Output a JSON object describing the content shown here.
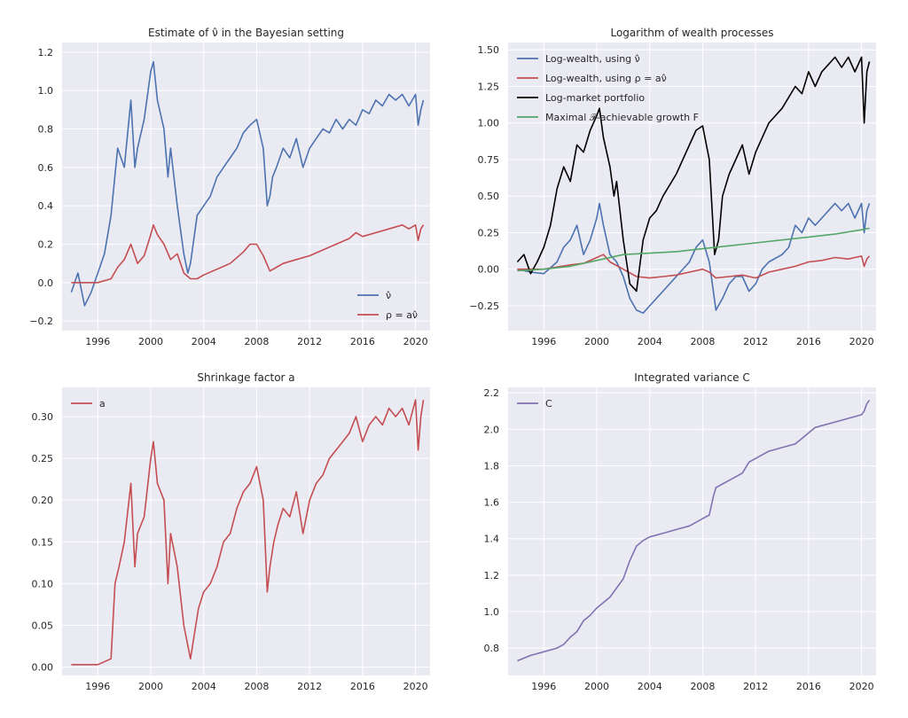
{
  "chart_data": [
    {
      "type": "line",
      "title": "Estimate of ν̂ in the Bayesian setting",
      "xlabel": "",
      "ylabel": "",
      "xlim": [
        1993.3,
        2021.1
      ],
      "ylim": [
        -0.25,
        1.25
      ],
      "xticks": [
        1996,
        2000,
        2004,
        2008,
        2012,
        2016,
        2020
      ],
      "xtick_labels": [
        "1996",
        "2000",
        "2004",
        "2008",
        "2012",
        "2016",
        "2020"
      ],
      "yticks": [
        -0.2,
        0.0,
        0.2,
        0.4,
        0.6,
        0.8,
        1.0,
        1.2
      ],
      "ytick_labels": [
        "−0.2",
        "0.0",
        "0.2",
        "0.4",
        "0.6",
        "0.8",
        "1.0",
        "1.2"
      ],
      "legend": "lower-right",
      "grid": true,
      "series": [
        {
          "name": "ν̂",
          "color": "#4c72b0",
          "x": [
            1994.0,
            1994.5,
            1995.0,
            1995.5,
            1996.0,
            1996.5,
            1997.0,
            1997.5,
            1998.0,
            1998.5,
            1998.8,
            1999.0,
            1999.5,
            2000.0,
            2000.2,
            2000.5,
            2001.0,
            2001.3,
            2001.5,
            2002.0,
            2002.5,
            2002.8,
            2003.0,
            2003.5,
            2004.0,
            2004.5,
            2005.0,
            2005.5,
            2006.0,
            2006.5,
            2007.0,
            2007.5,
            2008.0,
            2008.5,
            2008.8,
            2009.0,
            2009.2,
            2009.5,
            2010.0,
            2010.5,
            2011.0,
            2011.5,
            2012.0,
            2012.5,
            2013.0,
            2013.5,
            2014.0,
            2014.5,
            2015.0,
            2015.5,
            2016.0,
            2016.5,
            2017.0,
            2017.5,
            2018.0,
            2018.5,
            2019.0,
            2019.5,
            2020.0,
            2020.2,
            2020.4,
            2020.6
          ],
          "y": [
            -0.05,
            0.05,
            -0.12,
            -0.05,
            0.05,
            0.15,
            0.35,
            0.7,
            0.6,
            0.95,
            0.6,
            0.7,
            0.85,
            1.1,
            1.15,
            0.95,
            0.8,
            0.55,
            0.7,
            0.4,
            0.15,
            0.05,
            0.1,
            0.35,
            0.4,
            0.45,
            0.55,
            0.6,
            0.65,
            0.7,
            0.78,
            0.82,
            0.85,
            0.7,
            0.4,
            0.45,
            0.55,
            0.6,
            0.7,
            0.65,
            0.75,
            0.6,
            0.7,
            0.75,
            0.8,
            0.78,
            0.85,
            0.8,
            0.85,
            0.82,
            0.9,
            0.88,
            0.95,
            0.92,
            0.98,
            0.95,
            0.98,
            0.92,
            0.98,
            0.82,
            0.9,
            0.95
          ]
        },
        {
          "name": "ρ = aν̂",
          "color": "#c44e52",
          "x": [
            1994.0,
            1995.0,
            1996.0,
            1997.0,
            1997.5,
            1998.0,
            1998.5,
            1999.0,
            1999.5,
            2000.0,
            2000.2,
            2000.5,
            2001.0,
            2001.5,
            2002.0,
            2002.5,
            2003.0,
            2003.5,
            2004.0,
            2005.0,
            2006.0,
            2007.0,
            2007.5,
            2008.0,
            2008.5,
            2009.0,
            2009.5,
            2010.0,
            2011.0,
            2012.0,
            2013.0,
            2014.0,
            2015.0,
            2015.5,
            2016.0,
            2017.0,
            2018.0,
            2019.0,
            2019.5,
            2020.0,
            2020.2,
            2020.4,
            2020.6
          ],
          "y": [
            0.0,
            0.0,
            0.0,
            0.02,
            0.08,
            0.12,
            0.2,
            0.1,
            0.14,
            0.25,
            0.3,
            0.25,
            0.2,
            0.12,
            0.15,
            0.05,
            0.02,
            0.02,
            0.04,
            0.07,
            0.1,
            0.16,
            0.2,
            0.2,
            0.14,
            0.06,
            0.08,
            0.1,
            0.12,
            0.14,
            0.17,
            0.2,
            0.23,
            0.26,
            0.24,
            0.26,
            0.28,
            0.3,
            0.28,
            0.3,
            0.22,
            0.28,
            0.3
          ]
        }
      ]
    },
    {
      "type": "line",
      "title": "Logarithm of wealth processes",
      "xlabel": "",
      "ylabel": "",
      "xlim": [
        1993.3,
        2021.1
      ],
      "ylim": [
        -0.42,
        1.55
      ],
      "xticks": [
        1996,
        2000,
        2004,
        2008,
        2012,
        2016,
        2020
      ],
      "xtick_labels": [
        "1996",
        "2000",
        "2004",
        "2008",
        "2012",
        "2016",
        "2020"
      ],
      "yticks": [
        -0.25,
        0.0,
        0.25,
        0.5,
        0.75,
        1.0,
        1.25,
        1.5
      ],
      "ytick_labels": [
        "−0.25",
        "0.00",
        "0.25",
        "0.50",
        "0.75",
        "1.00",
        "1.25",
        "1.50"
      ],
      "legend": "top-left",
      "grid": true,
      "series": [
        {
          "name": "Log-wealth, using ν̂",
          "color": "#4c72b0",
          "x": [
            1994.0,
            1995.0,
            1996.0,
            1997.0,
            1997.5,
            1998.0,
            1998.5,
            1999.0,
            1999.5,
            2000.0,
            2000.2,
            2000.5,
            2001.0,
            2001.5,
            2002.0,
            2002.5,
            2003.0,
            2003.5,
            2004.0,
            2004.5,
            2005.0,
            2006.0,
            2007.0,
            2007.5,
            2008.0,
            2008.5,
            2009.0,
            2009.5,
            2010.0,
            2010.5,
            2011.0,
            2011.5,
            2012.0,
            2012.5,
            2013.0,
            2014.0,
            2014.5,
            2015.0,
            2015.5,
            2016.0,
            2016.5,
            2017.0,
            2017.5,
            2018.0,
            2018.5,
            2019.0,
            2019.5,
            2020.0,
            2020.2,
            2020.4,
            2020.6
          ],
          "y": [
            0.0,
            -0.02,
            -0.03,
            0.05,
            0.15,
            0.2,
            0.3,
            0.1,
            0.2,
            0.35,
            0.45,
            0.3,
            0.1,
            0.05,
            -0.05,
            -0.2,
            -0.28,
            -0.3,
            -0.25,
            -0.2,
            -0.15,
            -0.05,
            0.05,
            0.15,
            0.2,
            0.05,
            -0.28,
            -0.2,
            -0.1,
            -0.05,
            -0.05,
            -0.15,
            -0.1,
            0.0,
            0.05,
            0.1,
            0.15,
            0.3,
            0.25,
            0.35,
            0.3,
            0.35,
            0.4,
            0.45,
            0.4,
            0.45,
            0.35,
            0.45,
            0.25,
            0.4,
            0.45
          ]
        },
        {
          "name": "Log-wealth, using ρ = aν̂",
          "color": "#c44e52",
          "x": [
            1994.0,
            1996.0,
            1998.0,
            1999.0,
            2000.0,
            2000.5,
            2001.0,
            2002.0,
            2003.0,
            2004.0,
            2005.0,
            2006.0,
            2007.0,
            2008.0,
            2008.5,
            2009.0,
            2010.0,
            2011.0,
            2012.0,
            2013.0,
            2014.0,
            2015.0,
            2016.0,
            2017.0,
            2018.0,
            2019.0,
            2020.0,
            2020.2,
            2020.4,
            2020.6
          ],
          "y": [
            0.0,
            0.0,
            0.03,
            0.04,
            0.08,
            0.1,
            0.05,
            0.0,
            -0.05,
            -0.06,
            -0.05,
            -0.04,
            -0.02,
            0.0,
            -0.02,
            -0.06,
            -0.05,
            -0.04,
            -0.06,
            -0.02,
            0.0,
            0.02,
            0.05,
            0.06,
            0.08,
            0.07,
            0.09,
            0.02,
            0.07,
            0.09
          ]
        },
        {
          "name": "Log-market portfolio",
          "color": "#000000",
          "x": [
            1994.0,
            1994.5,
            1995.0,
            1995.5,
            1996.0,
            1996.5,
            1997.0,
            1997.5,
            1998.0,
            1998.5,
            1999.0,
            1999.5,
            2000.0,
            2000.2,
            2000.5,
            2001.0,
            2001.3,
            2001.5,
            2002.0,
            2002.5,
            2003.0,
            2003.5,
            2004.0,
            2004.5,
            2005.0,
            2006.0,
            2007.0,
            2007.5,
            2008.0,
            2008.5,
            2008.9,
            2009.2,
            2009.5,
            2010.0,
            2010.5,
            2011.0,
            2011.5,
            2012.0,
            2012.5,
            2013.0,
            2013.5,
            2014.0,
            2015.0,
            2015.5,
            2016.0,
            2016.5,
            2017.0,
            2017.5,
            2018.0,
            2018.5,
            2019.0,
            2019.5,
            2020.0,
            2020.2,
            2020.4,
            2020.6
          ],
          "y": [
            0.05,
            0.1,
            -0.03,
            0.05,
            0.15,
            0.3,
            0.55,
            0.7,
            0.6,
            0.85,
            0.8,
            0.95,
            1.05,
            1.1,
            0.9,
            0.7,
            0.5,
            0.6,
            0.2,
            -0.1,
            -0.15,
            0.2,
            0.35,
            0.4,
            0.5,
            0.65,
            0.85,
            0.95,
            0.98,
            0.75,
            0.1,
            0.2,
            0.5,
            0.65,
            0.75,
            0.85,
            0.65,
            0.8,
            0.9,
            1.0,
            1.05,
            1.1,
            1.25,
            1.2,
            1.35,
            1.25,
            1.35,
            1.4,
            1.45,
            1.38,
            1.45,
            1.35,
            1.45,
            1.0,
            1.35,
            1.42
          ]
        },
        {
          "name": "Maximal 𝒫-achievable growth F",
          "color": "#55a868",
          "x": [
            1994.0,
            1996.0,
            1998.0,
            2000.0,
            2002.0,
            2004.0,
            2006.0,
            2008.0,
            2010.0,
            2012.0,
            2014.0,
            2016.0,
            2018.0,
            2020.0,
            2020.6
          ],
          "y": [
            -0.01,
            0.0,
            0.02,
            0.06,
            0.1,
            0.11,
            0.12,
            0.14,
            0.16,
            0.18,
            0.2,
            0.22,
            0.24,
            0.27,
            0.28
          ]
        }
      ]
    },
    {
      "type": "line",
      "title": "Shrinkage factor a",
      "xlabel": "",
      "ylabel": "",
      "xlim": [
        1993.3,
        2021.1
      ],
      "ylim": [
        -0.01,
        0.335
      ],
      "xticks": [
        1996,
        2000,
        2004,
        2008,
        2012,
        2016,
        2020
      ],
      "xtick_labels": [
        "1996",
        "2000",
        "2004",
        "2008",
        "2012",
        "2016",
        "2020"
      ],
      "yticks": [
        0.0,
        0.05,
        0.1,
        0.15,
        0.2,
        0.25,
        0.3
      ],
      "ytick_labels": [
        "0.00",
        "0.05",
        "0.10",
        "0.15",
        "0.20",
        "0.25",
        "0.30"
      ],
      "legend": "top-left",
      "grid": true,
      "series": [
        {
          "name": "a",
          "color": "#c44e52",
          "x": [
            1994.0,
            1995.0,
            1996.0,
            1997.0,
            1997.3,
            1997.6,
            1998.0,
            1998.5,
            1998.8,
            1999.0,
            1999.5,
            2000.0,
            2000.2,
            2000.5,
            2001.0,
            2001.3,
            2001.5,
            2002.0,
            2002.5,
            2003.0,
            2003.3,
            2003.6,
            2004.0,
            2004.5,
            2005.0,
            2005.5,
            2006.0,
            2006.5,
            2007.0,
            2007.5,
            2008.0,
            2008.5,
            2008.8,
            2009.0,
            2009.3,
            2009.6,
            2010.0,
            2010.5,
            2011.0,
            2011.5,
            2012.0,
            2012.5,
            2013.0,
            2013.5,
            2014.0,
            2014.5,
            2015.0,
            2015.5,
            2016.0,
            2016.5,
            2017.0,
            2017.5,
            2018.0,
            2018.5,
            2019.0,
            2019.5,
            2020.0,
            2020.2,
            2020.4,
            2020.6
          ],
          "y": [
            0.003,
            0.003,
            0.003,
            0.01,
            0.1,
            0.12,
            0.15,
            0.22,
            0.12,
            0.16,
            0.18,
            0.25,
            0.27,
            0.22,
            0.2,
            0.1,
            0.16,
            0.12,
            0.05,
            0.01,
            0.04,
            0.07,
            0.09,
            0.1,
            0.12,
            0.15,
            0.16,
            0.19,
            0.21,
            0.22,
            0.24,
            0.2,
            0.09,
            0.12,
            0.15,
            0.17,
            0.19,
            0.18,
            0.21,
            0.16,
            0.2,
            0.22,
            0.23,
            0.25,
            0.26,
            0.27,
            0.28,
            0.3,
            0.27,
            0.29,
            0.3,
            0.29,
            0.31,
            0.3,
            0.31,
            0.29,
            0.32,
            0.26,
            0.3,
            0.32
          ]
        }
      ]
    },
    {
      "type": "line",
      "title": "Integrated variance C",
      "xlabel": "",
      "ylabel": "",
      "xlim": [
        1993.3,
        2021.1
      ],
      "ylim": [
        0.65,
        2.23
      ],
      "xticks": [
        1996,
        2000,
        2004,
        2008,
        2012,
        2016,
        2020
      ],
      "xtick_labels": [
        "1996",
        "2000",
        "2004",
        "2008",
        "2012",
        "2016",
        "2020"
      ],
      "yticks": [
        0.8,
        1.0,
        1.2,
        1.4,
        1.6,
        1.8,
        2.0,
        2.2
      ],
      "ytick_labels": [
        "0.8",
        "1.0",
        "1.2",
        "1.4",
        "1.6",
        "1.8",
        "2.0",
        "2.2"
      ],
      "legend": "top-left",
      "grid": true,
      "series": [
        {
          "name": "C",
          "color": "#8172b2",
          "x": [
            1994.0,
            1995.0,
            1996.0,
            1997.0,
            1997.5,
            1998.0,
            1998.5,
            1999.0,
            1999.5,
            2000.0,
            2000.5,
            2001.0,
            2001.5,
            2002.0,
            2002.5,
            2003.0,
            2003.5,
            2004.0,
            2005.0,
            2006.0,
            2007.0,
            2007.5,
            2008.0,
            2008.5,
            2008.8,
            2009.0,
            2009.5,
            2010.0,
            2010.5,
            2011.0,
            2011.5,
            2012.0,
            2012.5,
            2013.0,
            2014.0,
            2015.0,
            2015.5,
            2016.0,
            2016.5,
            2017.0,
            2018.0,
            2019.0,
            2020.0,
            2020.2,
            2020.4,
            2020.6
          ],
          "y": [
            0.73,
            0.76,
            0.78,
            0.8,
            0.82,
            0.86,
            0.89,
            0.95,
            0.98,
            1.02,
            1.05,
            1.08,
            1.13,
            1.18,
            1.28,
            1.36,
            1.39,
            1.41,
            1.43,
            1.45,
            1.47,
            1.49,
            1.51,
            1.53,
            1.63,
            1.68,
            1.7,
            1.72,
            1.74,
            1.76,
            1.82,
            1.84,
            1.86,
            1.88,
            1.9,
            1.92,
            1.95,
            1.98,
            2.01,
            2.02,
            2.04,
            2.06,
            2.08,
            2.1,
            2.14,
            2.16
          ]
        }
      ]
    }
  ]
}
